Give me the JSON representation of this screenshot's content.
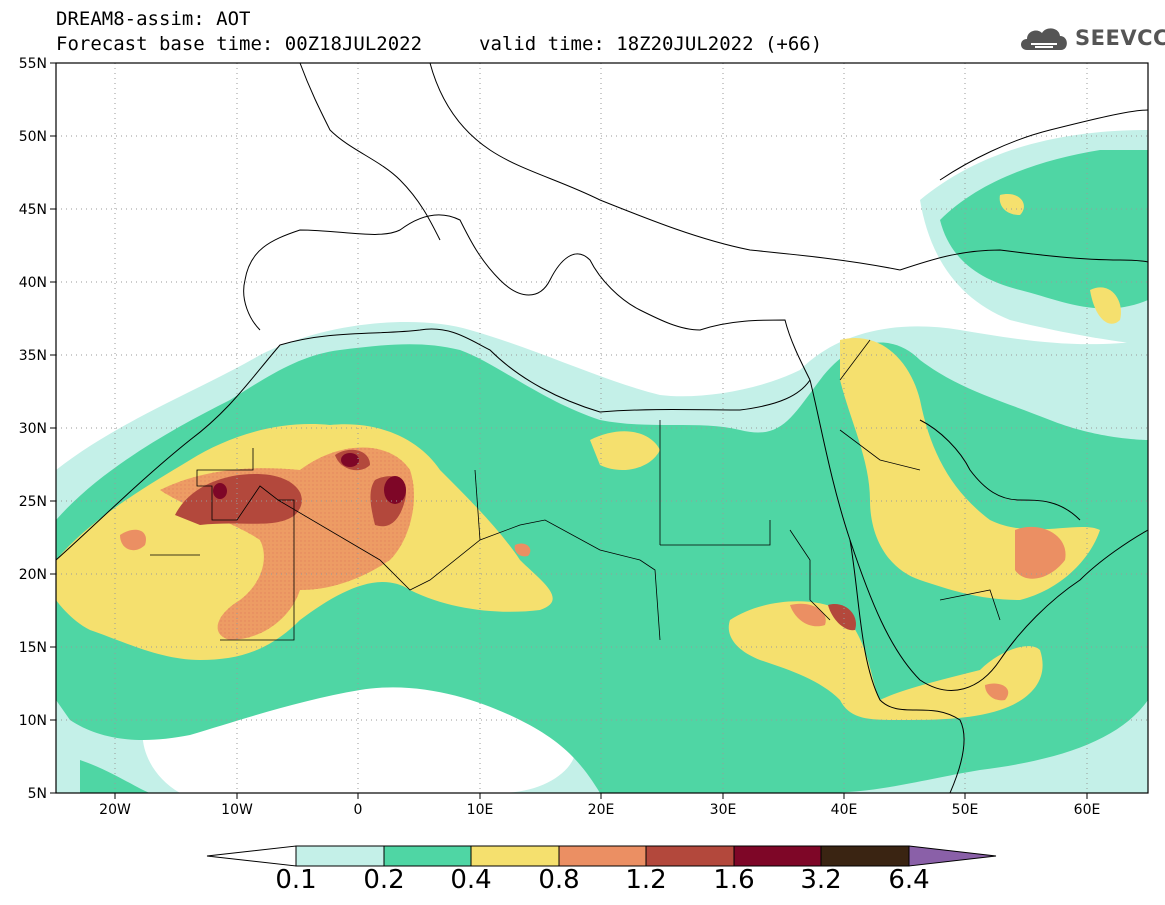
{
  "header": {
    "title": "DREAM8-assim: AOT",
    "forecast_base": "Forecast base time: 00Z18JUL2022",
    "valid_time": "valid time: 18Z20JUL2022 (+66)",
    "logo_text": "SEEVCCC",
    "logo_icon": "cloud-icon"
  },
  "map": {
    "projection": "lat-lon",
    "lon_range": [
      -25,
      65
    ],
    "lat_range": [
      5,
      55
    ],
    "lat_ticks": [
      "55N",
      "50N",
      "45N",
      "40N",
      "35N",
      "30N",
      "25N",
      "20N",
      "15N",
      "10N",
      "5N"
    ],
    "lon_ticks": [
      "20W",
      "10W",
      "0",
      "10E",
      "20E",
      "30E",
      "40E",
      "50E",
      "60E"
    ],
    "grid": "dotted"
  },
  "colorbar": {
    "labels": [
      "0.1",
      "0.2",
      "0.4",
      "0.8",
      "1.2",
      "1.6",
      "3.2",
      "6.4"
    ],
    "colors": [
      "#c4f0e8",
      "#4fd6a4",
      "#f5e06e",
      "#eb8f63",
      "#b3483c",
      "#7e0627",
      "#3a2412",
      "#8a60a8"
    ]
  }
}
